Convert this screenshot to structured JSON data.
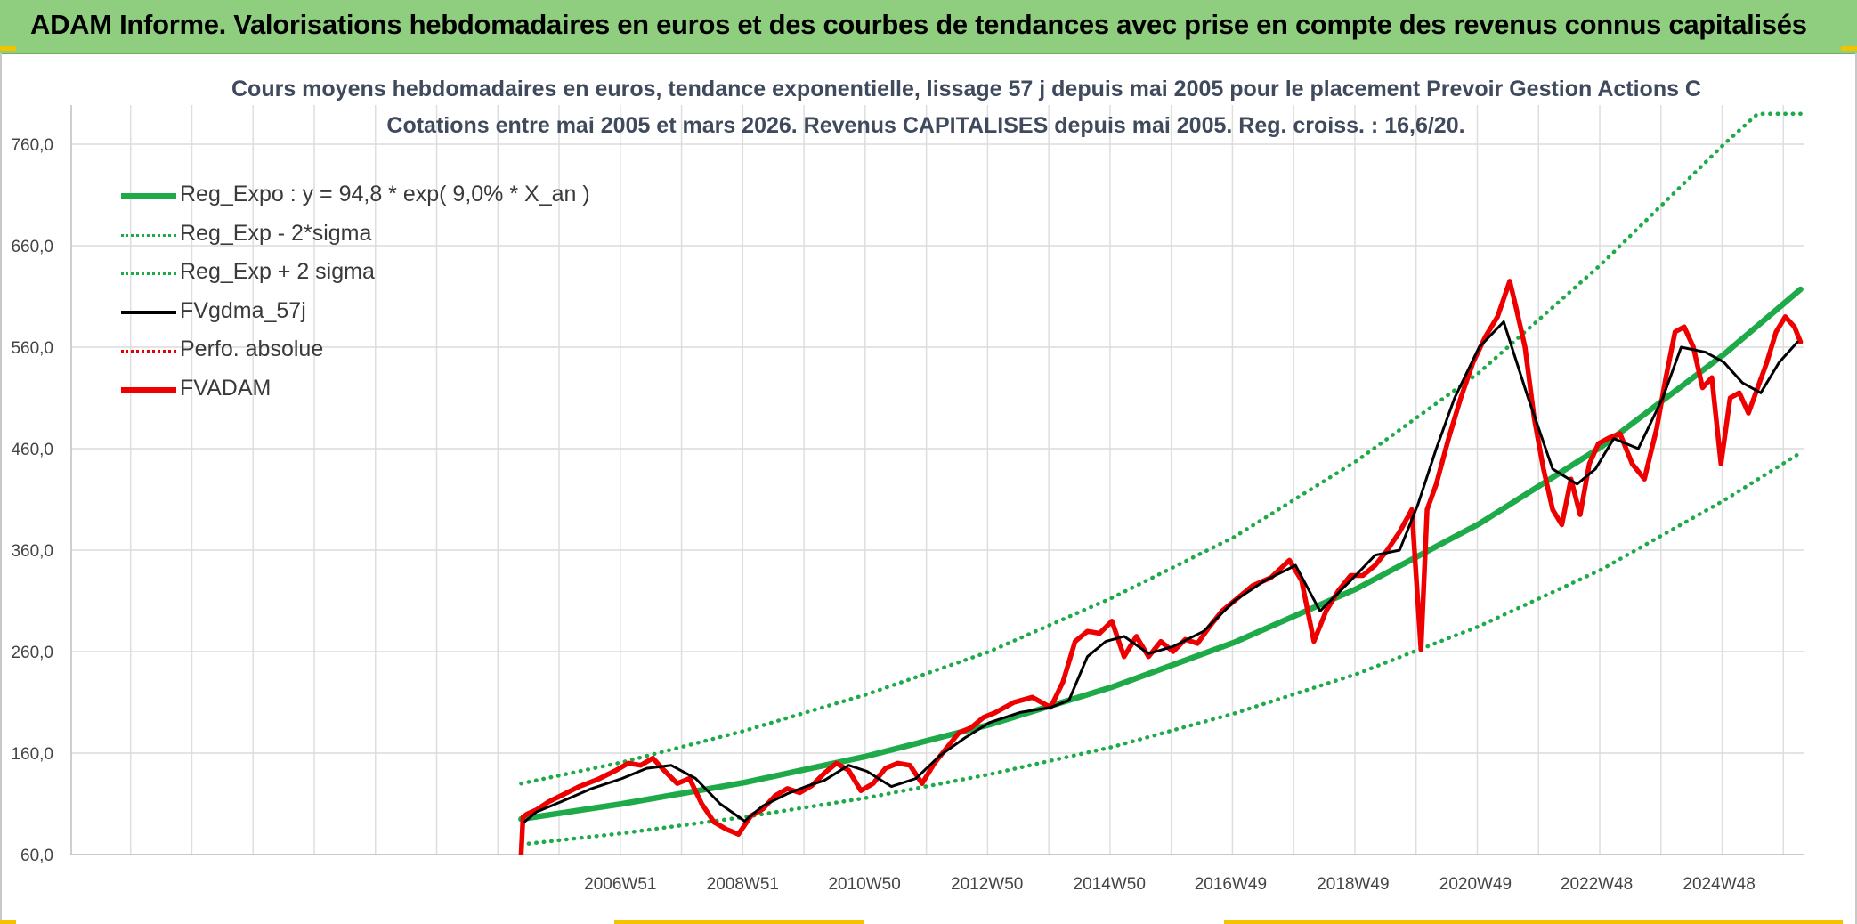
{
  "header": {
    "title": "ADAM Informe. Valorisations hebdomadaires en euros et des courbes de tendances avec prise en compte des revenus connus capitalisés"
  },
  "chart_data": {
    "type": "line",
    "title_line1": "Cours moyens hebdomadaires en euros, tendance exponentielle, lissage 57 j depuis mai 2005 pour le placement Prevoir Gestion Actions C",
    "title_line2": "Cotations entre mai 2005 et mars 2026. Revenus CAPITALISES depuis mai 2005. Reg. croiss. : 16,6/20.",
    "xlabel": "",
    "ylabel": "",
    "ylim": [
      60,
      760
    ],
    "yticks": [
      "60,0",
      "160,0",
      "260,0",
      "360,0",
      "460,0",
      "560,0",
      "660,0",
      "760,0"
    ],
    "xrange_years": [
      1998.0,
      2026.3
    ],
    "xticks": [
      {
        "label": "2006W51",
        "year": 2006.97
      },
      {
        "label": "2008W51",
        "year": 2008.97
      },
      {
        "label": "2010W50",
        "year": 2010.96
      },
      {
        "label": "2012W50",
        "year": 2012.96
      },
      {
        "label": "2014W50",
        "year": 2014.96
      },
      {
        "label": "2016W49",
        "year": 2016.94
      },
      {
        "label": "2018W49",
        "year": 2018.94
      },
      {
        "label": "2020W49",
        "year": 2020.94
      },
      {
        "label": "2022W48",
        "year": 2022.92
      },
      {
        "label": "2024W48",
        "year": 2024.92
      }
    ],
    "grid": true,
    "legend_position": "top-left",
    "series": [
      {
        "name": "Reg_Expo : y = 94,8 * exp( 9,0% *  X_an )",
        "color": "#1faa4a",
        "style": "solid-thick",
        "x": [
          2005.35,
          2007.0,
          2009.0,
          2011.0,
          2013.0,
          2015.0,
          2017.0,
          2019.0,
          2021.0,
          2023.0,
          2025.0,
          2026.25
        ],
        "y": [
          95,
          110,
          131,
          157,
          188,
          225,
          269,
          322,
          386,
          462,
          553,
          617
        ]
      },
      {
        "name": "Reg_Exp - 2*sigma",
        "color": "#1faa4a",
        "style": "dotted",
        "x": [
          2005.35,
          2007.0,
          2009.0,
          2011.0,
          2013.0,
          2015.0,
          2017.0,
          2019.0,
          2021.0,
          2023.0,
          2025.0,
          2026.25
        ],
        "y": [
          70,
          81,
          97,
          116,
          139,
          166,
          199,
          238,
          285,
          341,
          409,
          456
        ]
      },
      {
        "name": "Reg_Exp + 2 sigma",
        "color": "#1faa4a",
        "style": "dotted",
        "x": [
          2005.35,
          2007.0,
          2009.0,
          2011.0,
          2013.0,
          2015.0,
          2017.0,
          2019.0,
          2021.0,
          2023.0,
          2025.0,
          2025.55,
          2026.25
        ],
        "y": [
          130,
          151,
          182,
          218,
          260,
          313,
          373,
          448,
          535,
          642,
          760,
          790,
          790
        ]
      },
      {
        "name": "FVgdma_57j",
        "color": "#000000",
        "style": "solid",
        "x": [
          2005.4,
          2005.6,
          2006.0,
          2006.5,
          2007.0,
          2007.4,
          2007.8,
          2008.2,
          2008.6,
          2009.0,
          2009.3,
          2009.7,
          2010.0,
          2010.3,
          2010.7,
          2011.0,
          2011.4,
          2011.8,
          2012.2,
          2012.6,
          2013.0,
          2013.5,
          2014.0,
          2014.3,
          2014.6,
          2014.9,
          2015.2,
          2015.6,
          2016.0,
          2016.5,
          2017.0,
          2017.5,
          2018.0,
          2018.4,
          2018.9,
          2019.3,
          2019.7,
          2020.0,
          2020.3,
          2020.6,
          2021.0,
          2021.4,
          2021.8,
          2022.2,
          2022.6,
          2022.9,
          2023.2,
          2023.6,
          2024.0,
          2024.3,
          2024.7,
          2025.0,
          2025.3,
          2025.6,
          2025.9,
          2026.2
        ],
        "y": [
          92,
          102,
          112,
          125,
          135,
          145,
          148,
          135,
          110,
          93,
          108,
          120,
          127,
          133,
          148,
          142,
          127,
          135,
          158,
          175,
          190,
          200,
          205,
          212,
          255,
          270,
          275,
          258,
          265,
          280,
          310,
          330,
          345,
          300,
          330,
          355,
          360,
          405,
          460,
          510,
          560,
          585,
          510,
          440,
          425,
          440,
          470,
          460,
          510,
          560,
          555,
          545,
          525,
          515,
          545,
          565
        ]
      },
      {
        "name": "Perfo. absolue",
        "color": "#e00000",
        "style": "dotted",
        "x": [],
        "y": []
      },
      {
        "name": "FVADAM",
        "color": "#ee0000",
        "style": "solid-thick",
        "x": [
          2005.35,
          2005.38,
          2005.45,
          2005.6,
          2005.8,
          2006.0,
          2006.3,
          2006.6,
          2006.9,
          2007.1,
          2007.3,
          2007.5,
          2007.7,
          2007.9,
          2008.1,
          2008.3,
          2008.5,
          2008.7,
          2008.9,
          2009.1,
          2009.3,
          2009.5,
          2009.7,
          2009.9,
          2010.1,
          2010.3,
          2010.5,
          2010.7,
          2010.9,
          2011.1,
          2011.3,
          2011.5,
          2011.7,
          2011.9,
          2012.1,
          2012.3,
          2012.5,
          2012.7,
          2012.9,
          2013.1,
          2013.4,
          2013.7,
          2014.0,
          2014.2,
          2014.4,
          2014.6,
          2014.8,
          2015.0,
          2015.2,
          2015.4,
          2015.6,
          2015.8,
          2016.0,
          2016.2,
          2016.4,
          2016.6,
          2016.8,
          2017.0,
          2017.3,
          2017.6,
          2017.9,
          2018.1,
          2018.3,
          2018.5,
          2018.7,
          2018.9,
          2019.1,
          2019.3,
          2019.5,
          2019.7,
          2019.9,
          2020.05,
          2020.15,
          2020.3,
          2020.5,
          2020.7,
          2020.9,
          2021.1,
          2021.3,
          2021.5,
          2021.6,
          2021.75,
          2021.9,
          2022.05,
          2022.2,
          2022.35,
          2022.5,
          2022.65,
          2022.8,
          2022.95,
          2023.1,
          2023.3,
          2023.5,
          2023.7,
          2023.9,
          2024.05,
          2024.2,
          2024.35,
          2024.5,
          2024.65,
          2024.8,
          2024.95,
          2025.1,
          2025.25,
          2025.4,
          2025.55,
          2025.7,
          2025.85,
          2026.0,
          2026.15,
          2026.25
        ],
        "y": [
          60,
          97,
          100,
          104,
          112,
          118,
          127,
          134,
          143,
          150,
          148,
          155,
          142,
          130,
          135,
          110,
          92,
          85,
          80,
          98,
          105,
          118,
          125,
          121,
          128,
          140,
          150,
          143,
          123,
          130,
          145,
          150,
          148,
          130,
          150,
          165,
          180,
          185,
          195,
          200,
          210,
          215,
          205,
          230,
          270,
          280,
          278,
          290,
          255,
          275,
          255,
          270,
          260,
          272,
          268,
          285,
          300,
          310,
          325,
          333,
          350,
          330,
          270,
          300,
          320,
          335,
          335,
          345,
          360,
          378,
          400,
          262,
          400,
          425,
          470,
          510,
          545,
          570,
          590,
          625,
          600,
          560,
          490,
          440,
          400,
          385,
          430,
          395,
          445,
          465,
          470,
          475,
          445,
          430,
          480,
          530,
          575,
          580,
          560,
          520,
          530,
          445,
          510,
          515,
          495,
          520,
          545,
          575,
          590,
          580,
          565
        ]
      }
    ]
  }
}
